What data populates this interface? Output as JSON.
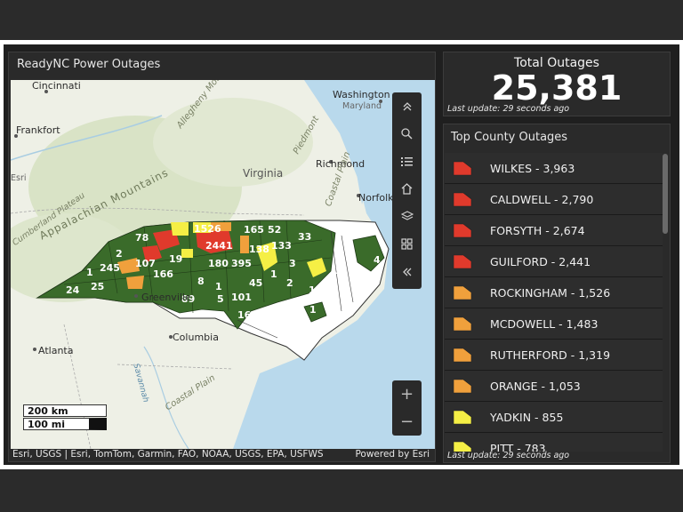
{
  "map": {
    "title": "ReadyNC Power Outages",
    "attribution": "Esri, USGS | Esri, TomTom, Garmin, FAO, NOAA, USGS, EPA, USFWS",
    "powered_by": "Powered by Esri",
    "scale_km": "200 km",
    "scale_mi": "100 mi",
    "places": {
      "cincinnati": "Cincinnati",
      "frankfort": "Frankfort",
      "washington": "Washington",
      "maryland": "Maryland",
      "richmond": "Richmond",
      "virginia": "Virginia",
      "norfolk": "Norfolk",
      "greenville": "Greenville",
      "atlanta": "Atlanta",
      "columbia": "Columbia",
      "appalachian": "Appalachian Mountains",
      "allegheny": "Allegheny Mountains",
      "piedmont": "Piedmont",
      "coastal_plain": "Coastal Plain",
      "coastal_plain2": "Coastal Plain",
      "savannah": "Savannah",
      "cumberland": "Cumberland Plateau",
      "esri": "Esri"
    },
    "county_labels": [
      "78",
      "1526",
      "2441",
      "165",
      "52",
      "33",
      "138",
      "133",
      "2",
      "245",
      "107",
      "19",
      "1",
      "24",
      "25",
      "166",
      "180",
      "395",
      "3",
      "1",
      "8",
      "45",
      "1",
      "2",
      "1",
      "89",
      "5",
      "101",
      "16",
      "1",
      "4",
      "1"
    ]
  },
  "toolbar": {
    "icons": [
      "collapse-up-icon",
      "search-icon",
      "legend-list-icon",
      "home-icon",
      "layers-icon",
      "basemap-gallery-icon",
      "collapse-left-icon"
    ]
  },
  "total": {
    "title": "Total Outages",
    "value": "25,381",
    "last_update": "Last update: 29 seconds ago"
  },
  "counties": {
    "title": "Top County Outages",
    "last_update": "Last update: 29 seconds ago",
    "items": [
      {
        "label": "WILKES - 3,963",
        "color": "#e03a2c"
      },
      {
        "label": "CALDWELL - 2,790",
        "color": "#e03a2c"
      },
      {
        "label": "FORSYTH - 2,674",
        "color": "#e03a2c"
      },
      {
        "label": "GUILFORD - 2,441",
        "color": "#e03a2c"
      },
      {
        "label": "ROCKINGHAM - 1,526",
        "color": "#f0a03c"
      },
      {
        "label": "MCDOWELL - 1,483",
        "color": "#f0a03c"
      },
      {
        "label": "RUTHERFORD - 1,319",
        "color": "#f0a03c"
      },
      {
        "label": "ORANGE - 1,053",
        "color": "#f0a03c"
      },
      {
        "label": "YADKIN - 855",
        "color": "#f5ef45"
      },
      {
        "label": "PITT - 783",
        "color": "#f5ef45"
      }
    ]
  },
  "colors": {
    "red": "#e03a2c",
    "orange": "#f0a03c",
    "yellow": "#f5ef45",
    "green": "#3a6b2a"
  }
}
